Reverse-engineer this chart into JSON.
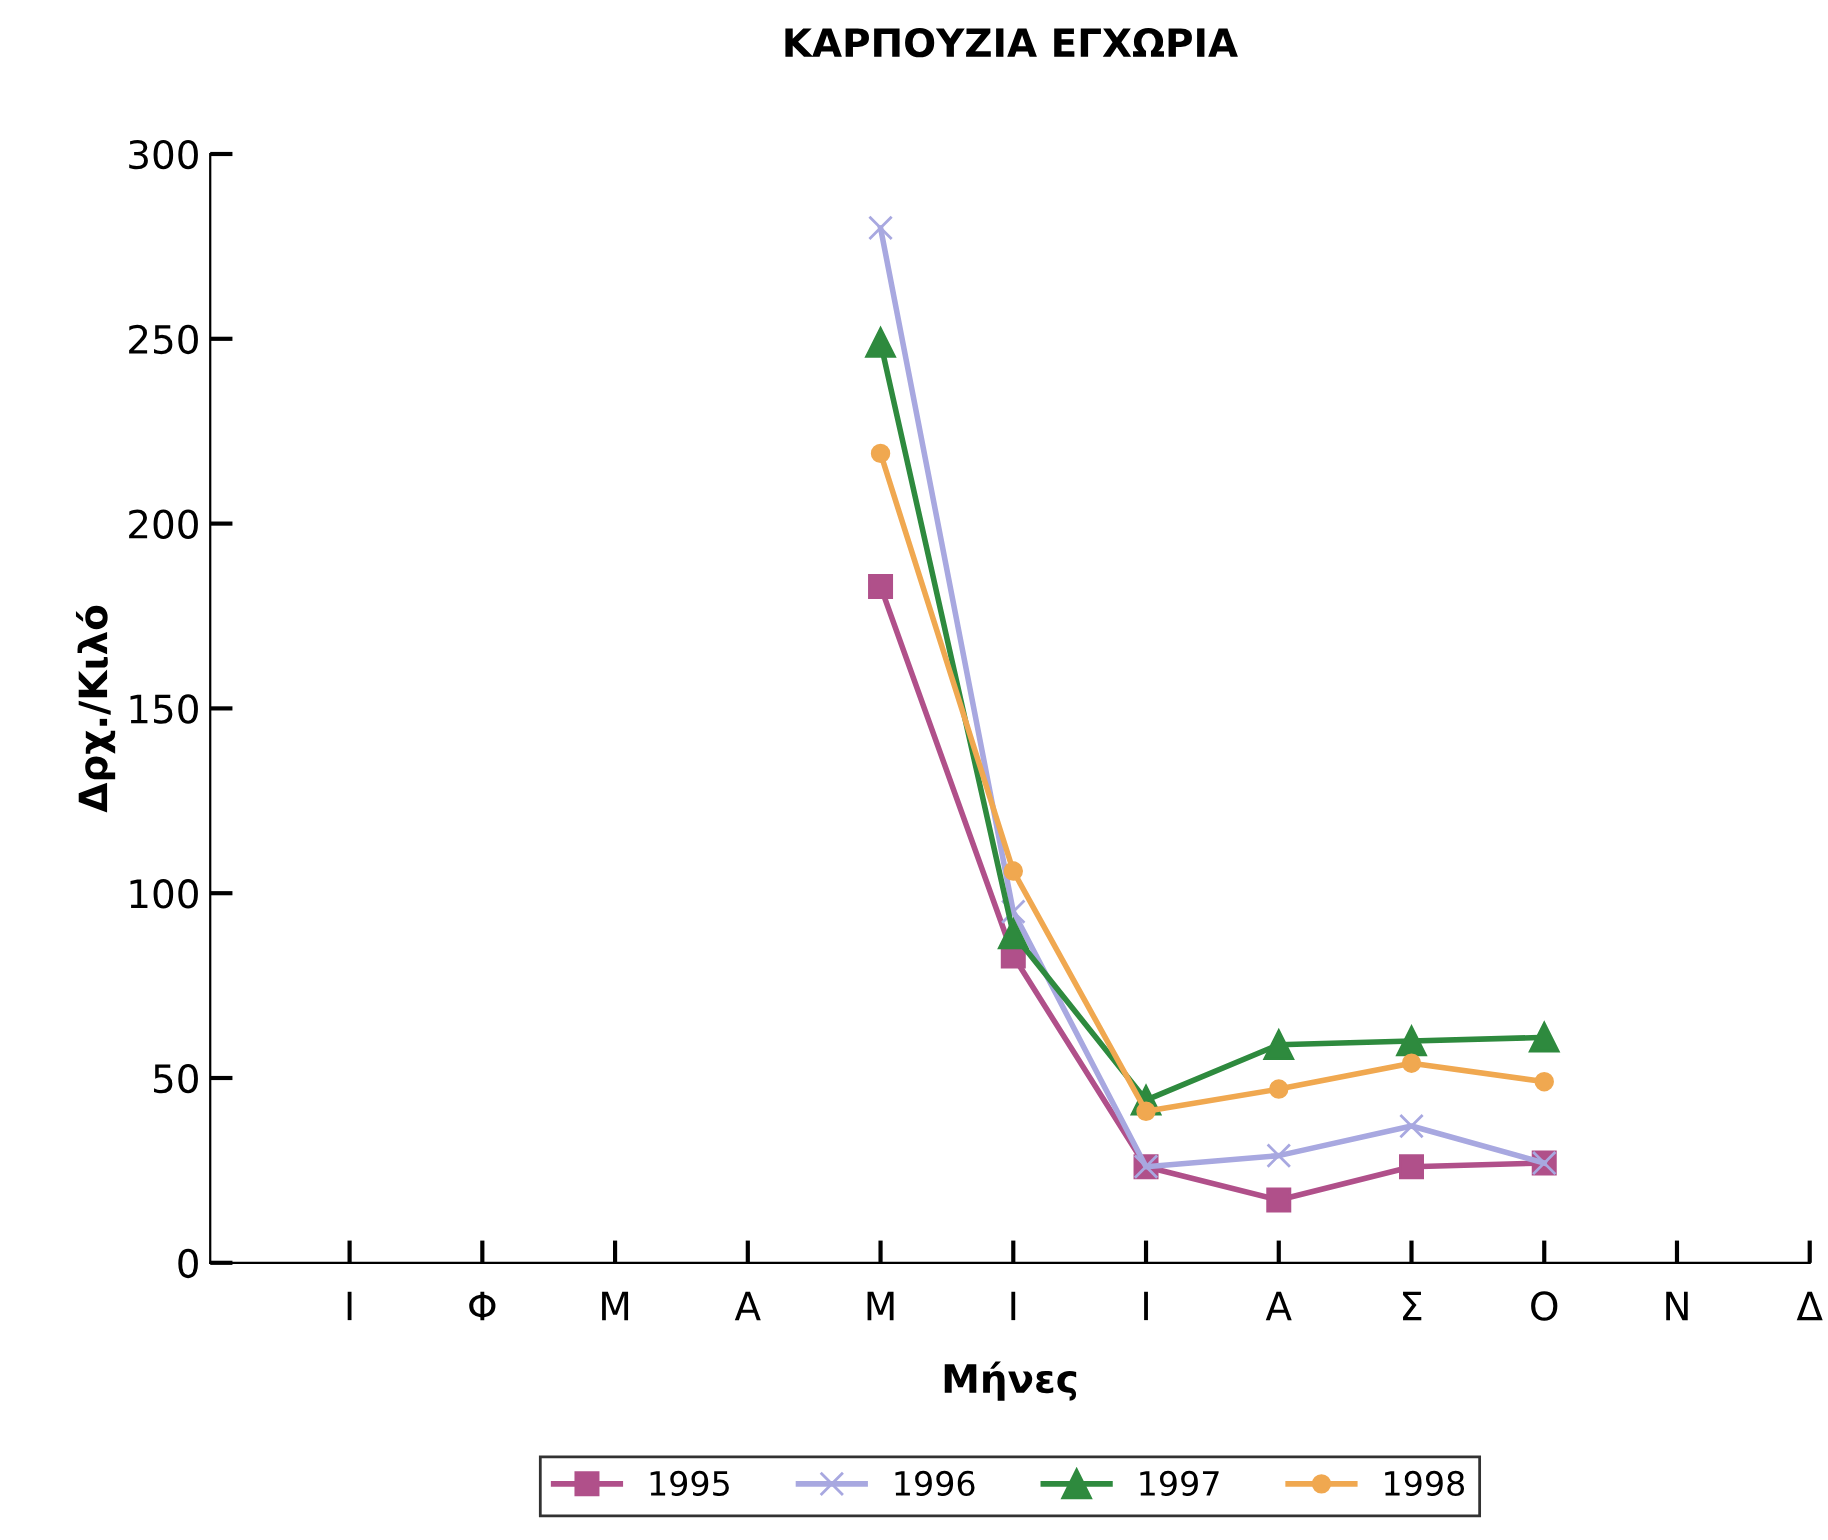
{
  "chart_data": {
    "type": "line",
    "title": "ΚΑΡΠΟΥΖΙΑ ΕΓΧΩΡΙΑ",
    "xlabel": "Μήνες",
    "ylabel": "Δρχ./Κιλό",
    "categories": [
      "Ι",
      "Φ",
      "Μ",
      "Α",
      "Μ",
      "Ι",
      "Ι",
      "Α",
      "Σ",
      "Ο",
      "Ν",
      "Δ"
    ],
    "ylim": [
      0,
      300
    ],
    "yticks": [
      0,
      50,
      100,
      150,
      200,
      250,
      300
    ],
    "grid": false,
    "legend": "bottom",
    "series": [
      {
        "name": "1995",
        "color": "#b0508a",
        "marker": "square",
        "values": [
          null,
          null,
          null,
          null,
          183,
          83,
          26,
          17,
          26,
          27,
          null,
          null
        ]
      },
      {
        "name": "1996",
        "color": "#a8a8e0",
        "marker": "cross",
        "values": [
          null,
          null,
          null,
          null,
          280,
          95,
          26,
          29,
          37,
          27,
          null,
          null
        ]
      },
      {
        "name": "1997",
        "color": "#2e8a3e",
        "marker": "triangle",
        "values": [
          null,
          null,
          null,
          null,
          249,
          89,
          44,
          59,
          60,
          61,
          null,
          null
        ]
      },
      {
        "name": "1998",
        "color": "#f0a850",
        "marker": "circle",
        "values": [
          null,
          null,
          null,
          null,
          219,
          106,
          41,
          47,
          54,
          49,
          null,
          null
        ]
      }
    ]
  }
}
